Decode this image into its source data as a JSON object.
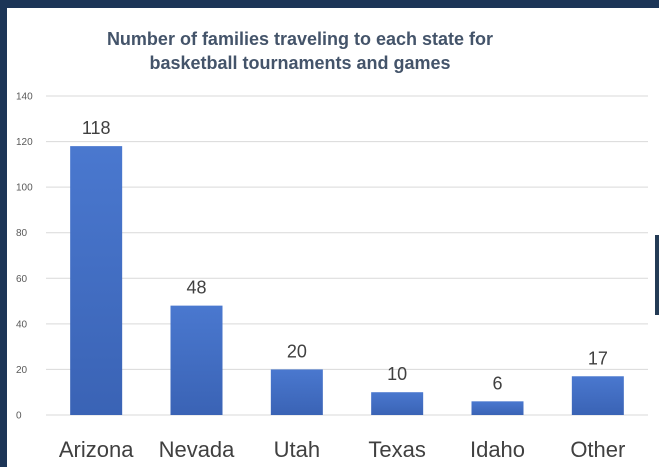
{
  "chart_data": {
    "type": "bar",
    "title_lines": [
      "Number of families traveling to each state for",
      "basketball tournaments and games"
    ],
    "categories": [
      "Arizona",
      "Nevada",
      "Utah",
      "Texas",
      "Idaho",
      "Other"
    ],
    "values": [
      118,
      48,
      20,
      10,
      6,
      17
    ],
    "data_labels": [
      "118",
      "48",
      "20",
      "10",
      "6",
      "17"
    ],
    "ylim": [
      0,
      140
    ],
    "yticks": [
      0,
      20,
      40,
      60,
      80,
      100,
      120,
      140
    ],
    "grid": true,
    "bar_color": "#4472c4",
    "legend": "none"
  }
}
